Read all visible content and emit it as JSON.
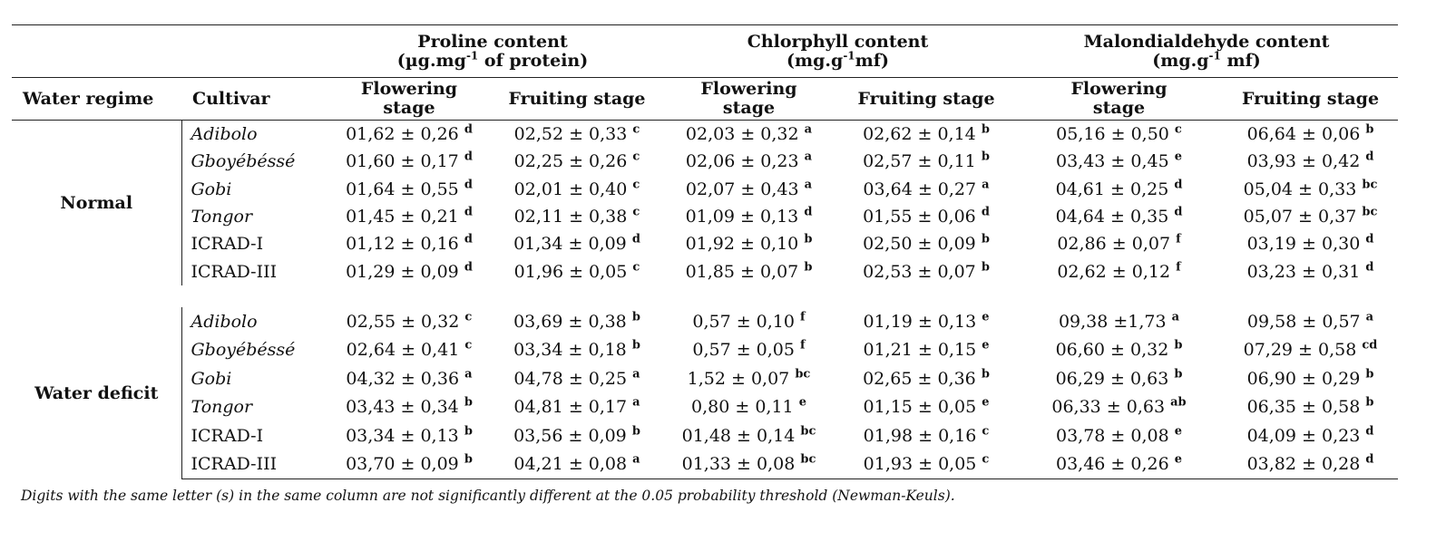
{
  "groups": {
    "proline": {
      "line1": "Proline content",
      "line2_pre": "(µg.mg",
      "line2_sup": "-1",
      "line2_post": " of protein)"
    },
    "chlorophyll": {
      "line1": "Chlorphyll content",
      "line2_pre": "(mg.g",
      "line2_sup": "-1",
      "line2_post": "mf)"
    },
    "mda": {
      "line1": "Malondialdehyde content",
      "line2_pre": "(mg.g",
      "line2_sup": "-1",
      "line2_post": " mf)"
    }
  },
  "headers": {
    "water_regime": "Water regime",
    "cultivar": "Cultivar",
    "flowering_1": "Flowering",
    "flowering_2": "stage",
    "fruiting": "Fruiting stage"
  },
  "sections": [
    {
      "regime": "Normal",
      "rows": [
        {
          "cultivar": "Adibolo",
          "italic": true,
          "cells": [
            {
              "v": "01,62 ± 0,26",
              "l": "d"
            },
            {
              "v": "02,52 ± 0,33",
              "l": "c"
            },
            {
              "v": "02,03 ± 0,32",
              "l": "a"
            },
            {
              "v": "02,62 ± 0,14",
              "l": "b"
            },
            {
              "v": "05,16 ± 0,50",
              "l": "c"
            },
            {
              "v": "06,64 ± 0,06",
              "l": "b"
            }
          ]
        },
        {
          "cultivar": "Gboyébéssé",
          "italic": true,
          "cells": [
            {
              "v": "01,60 ± 0,17",
              "l": "d"
            },
            {
              "v": "02,25 ± 0,26",
              "l": "c"
            },
            {
              "v": "02,06 ± 0,23",
              "l": "a"
            },
            {
              "v": "02,57 ± 0,11",
              "l": "b"
            },
            {
              "v": "03,43 ± 0,45",
              "l": "e"
            },
            {
              "v": "03,93 ± 0,42",
              "l": "d"
            }
          ]
        },
        {
          "cultivar": "Gobi",
          "italic": true,
          "cells": [
            {
              "v": "01,64 ± 0,55",
              "l": "d"
            },
            {
              "v": "02,01 ± 0,40",
              "l": "c"
            },
            {
              "v": "02,07 ± 0,43",
              "l": "a"
            },
            {
              "v": "03,64 ± 0,27",
              "l": "a"
            },
            {
              "v": "04,61 ± 0,25",
              "l": "d"
            },
            {
              "v": "05,04 ± 0,33",
              "l": "bc"
            }
          ]
        },
        {
          "cultivar": "Tongor",
          "italic": true,
          "cells": [
            {
              "v": "01,45 ± 0,21",
              "l": "d"
            },
            {
              "v": "02,11 ± 0,38",
              "l": "c"
            },
            {
              "v": "01,09 ± 0,13",
              "l": "d"
            },
            {
              "v": "01,55 ± 0,06",
              "l": "d"
            },
            {
              "v": "04,64 ± 0,35",
              "l": "d"
            },
            {
              "v": "05,07 ± 0,37",
              "l": "bc"
            }
          ]
        },
        {
          "cultivar": "ICRAD-I",
          "italic": false,
          "cells": [
            {
              "v": "01,12 ± 0,16",
              "l": "d"
            },
            {
              "v": "01,34 ± 0,09",
              "l": "d"
            },
            {
              "v": "01,92 ± 0,10",
              "l": "b"
            },
            {
              "v": "02,50 ± 0,09",
              "l": "b"
            },
            {
              "v": "02,86 ± 0,07",
              "l": "f"
            },
            {
              "v": "03,19 ± 0,30",
              "l": "d"
            }
          ]
        },
        {
          "cultivar": "ICRAD-III",
          "italic": false,
          "cells": [
            {
              "v": "01,29 ± 0,09",
              "l": "d"
            },
            {
              "v": "01,96 ± 0,05",
              "l": "c"
            },
            {
              "v": "01,85 ± 0,07",
              "l": "b"
            },
            {
              "v": "02,53 ± 0,07",
              "l": "b"
            },
            {
              "v": "02,62 ± 0,12",
              "l": "f"
            },
            {
              "v": "03,23 ± 0,31",
              "l": "d"
            }
          ]
        }
      ]
    },
    {
      "regime": "Water deficit",
      "rows": [
        {
          "cultivar": "Adibolo",
          "italic": true,
          "cells": [
            {
              "v": "02,55 ± 0,32",
              "l": "c"
            },
            {
              "v": "03,69 ± 0,38",
              "l": "b"
            },
            {
              "v": "0,57 ± 0,10",
              "l": "f"
            },
            {
              "v": "01,19 ± 0,13",
              "l": "e"
            },
            {
              "v": "09,38 ±1,73",
              "l": "a"
            },
            {
              "v": "09,58 ± 0,57",
              "l": "a"
            }
          ]
        },
        {
          "cultivar": "Gboyébéssé",
          "italic": true,
          "cells": [
            {
              "v": "02,64 ± 0,41",
              "l": "c"
            },
            {
              "v": "03,34 ± 0,18",
              "l": "b"
            },
            {
              "v": "0,57 ± 0,05",
              "l": "f"
            },
            {
              "v": "01,21 ± 0,15",
              "l": "e"
            },
            {
              "v": "06,60 ± 0,32",
              "l": "b"
            },
            {
              "v": "07,29 ± 0,58",
              "l": "cd"
            }
          ]
        },
        {
          "cultivar": "Gobi",
          "italic": true,
          "cells": [
            {
              "v": "04,32 ± 0,36",
              "l": "a"
            },
            {
              "v": "04,78 ± 0,25",
              "l": "a"
            },
            {
              "v": "1,52 ± 0,07",
              "l": "bc"
            },
            {
              "v": "02,65 ± 0,36",
              "l": "b"
            },
            {
              "v": "06,29 ± 0,63",
              "l": "b"
            },
            {
              "v": "06,90 ± 0,29",
              "l": "b"
            }
          ]
        },
        {
          "cultivar": "Tongor",
          "italic": true,
          "cells": [
            {
              "v": "03,43 ± 0,34",
              "l": "b"
            },
            {
              "v": "04,81 ± 0,17",
              "l": "a"
            },
            {
              "v": "0,80 ± 0,11",
              "l": "e"
            },
            {
              "v": "01,15 ± 0,05",
              "l": "e"
            },
            {
              "v": "06,33 ± 0,63",
              "l": "ab"
            },
            {
              "v": "06,35 ± 0,58",
              "l": "b"
            }
          ]
        },
        {
          "cultivar": "ICRAD-I",
          "italic": false,
          "cells": [
            {
              "v": "03,34 ± 0,13",
              "l": "b"
            },
            {
              "v": "03,56 ± 0,09",
              "l": "b"
            },
            {
              "v": "01,48 ± 0,14",
              "l": "bc"
            },
            {
              "v": "01,98 ± 0,16",
              "l": "c"
            },
            {
              "v": "03,78 ± 0,08",
              "l": "e"
            },
            {
              "v": "04,09 ± 0,23",
              "l": "d"
            }
          ]
        },
        {
          "cultivar": "ICRAD-III",
          "italic": false,
          "cells": [
            {
              "v": "03,70 ± 0,09",
              "l": "b"
            },
            {
              "v": "04,21 ± 0,08",
              "l": "a"
            },
            {
              "v": "01,33 ± 0,08",
              "l": "bc"
            },
            {
              "v": "01,93 ± 0,05",
              "l": "c"
            },
            {
              "v": "03,46 ± 0,26",
              "l": "e"
            },
            {
              "v": "03,82 ± 0,28",
              "l": "d"
            }
          ]
        }
      ]
    }
  ],
  "footnote": "Digits with the same letter (s) in the same column are not significantly different at the 0.05 probability threshold (Newman-Keuls)."
}
